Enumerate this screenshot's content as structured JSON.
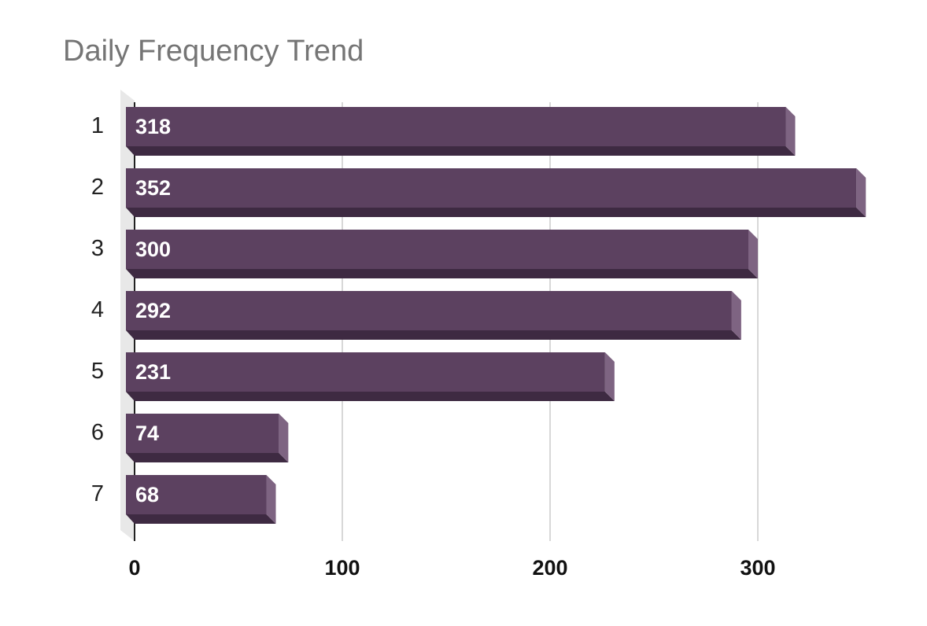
{
  "chart_data": {
    "type": "bar",
    "orientation": "horizontal",
    "style": "3d",
    "title": "Daily Frequency Trend",
    "xlabel": "",
    "ylabel": "",
    "categories": [
      "1",
      "2",
      "3",
      "4",
      "5",
      "6",
      "7"
    ],
    "values": [
      318,
      352,
      300,
      292,
      231,
      74,
      68
    ],
    "data_labels": [
      "318",
      "352",
      "300",
      "292",
      "231",
      "74",
      "68"
    ],
    "xlim": [
      0,
      352
    ],
    "x_ticks": [
      0,
      100,
      200,
      300
    ],
    "x_tick_labels": [
      "0",
      "100",
      "200",
      "300"
    ],
    "grid": true,
    "legend": "none",
    "colors": {
      "bar_face": "#5c4160",
      "bar_bottom": "#3e2a42",
      "bar_side": "#7e6482",
      "grid": "#cccccc",
      "axis": "#222222",
      "wall": "#e8e8e8"
    }
  }
}
